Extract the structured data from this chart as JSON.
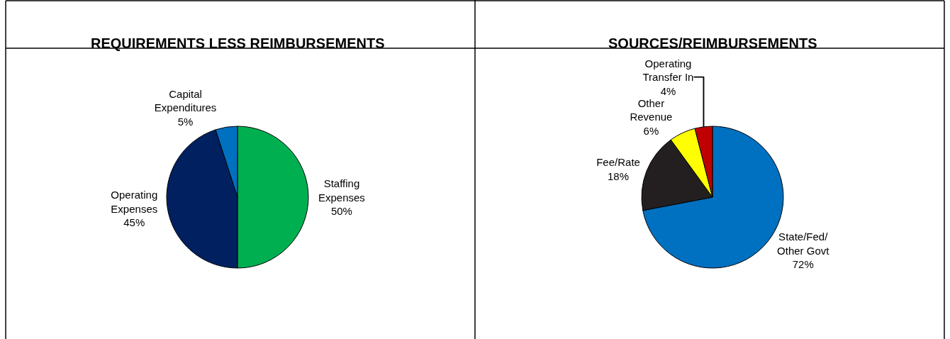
{
  "chart_data": [
    {
      "type": "pie",
      "title": "REQUIREMENTS LESS REIMBURSEMENTS",
      "categories": [
        "Staffing\nExpenses",
        "Operating\nExpenses",
        "Capital\nExpenditures"
      ],
      "values": [
        50,
        45,
        5
      ],
      "value_labels": [
        "50%",
        "45%",
        "5%"
      ],
      "colors": [
        "#00b050",
        "#002060",
        "#0070c0"
      ]
    },
    {
      "type": "pie",
      "title": "SOURCES/REIMBURSEMENTS",
      "categories": [
        "State/Fed/\nOther Govt",
        "Fee/Rate",
        "Other\nRevenue",
        "Operating\nTransfer In"
      ],
      "values": [
        72,
        18,
        6,
        4
      ],
      "value_labels": [
        "72%",
        "18%",
        "6%",
        "4%"
      ],
      "colors": [
        "#0070c0",
        "#231f20",
        "#ffff00",
        "#c00000"
      ]
    }
  ]
}
